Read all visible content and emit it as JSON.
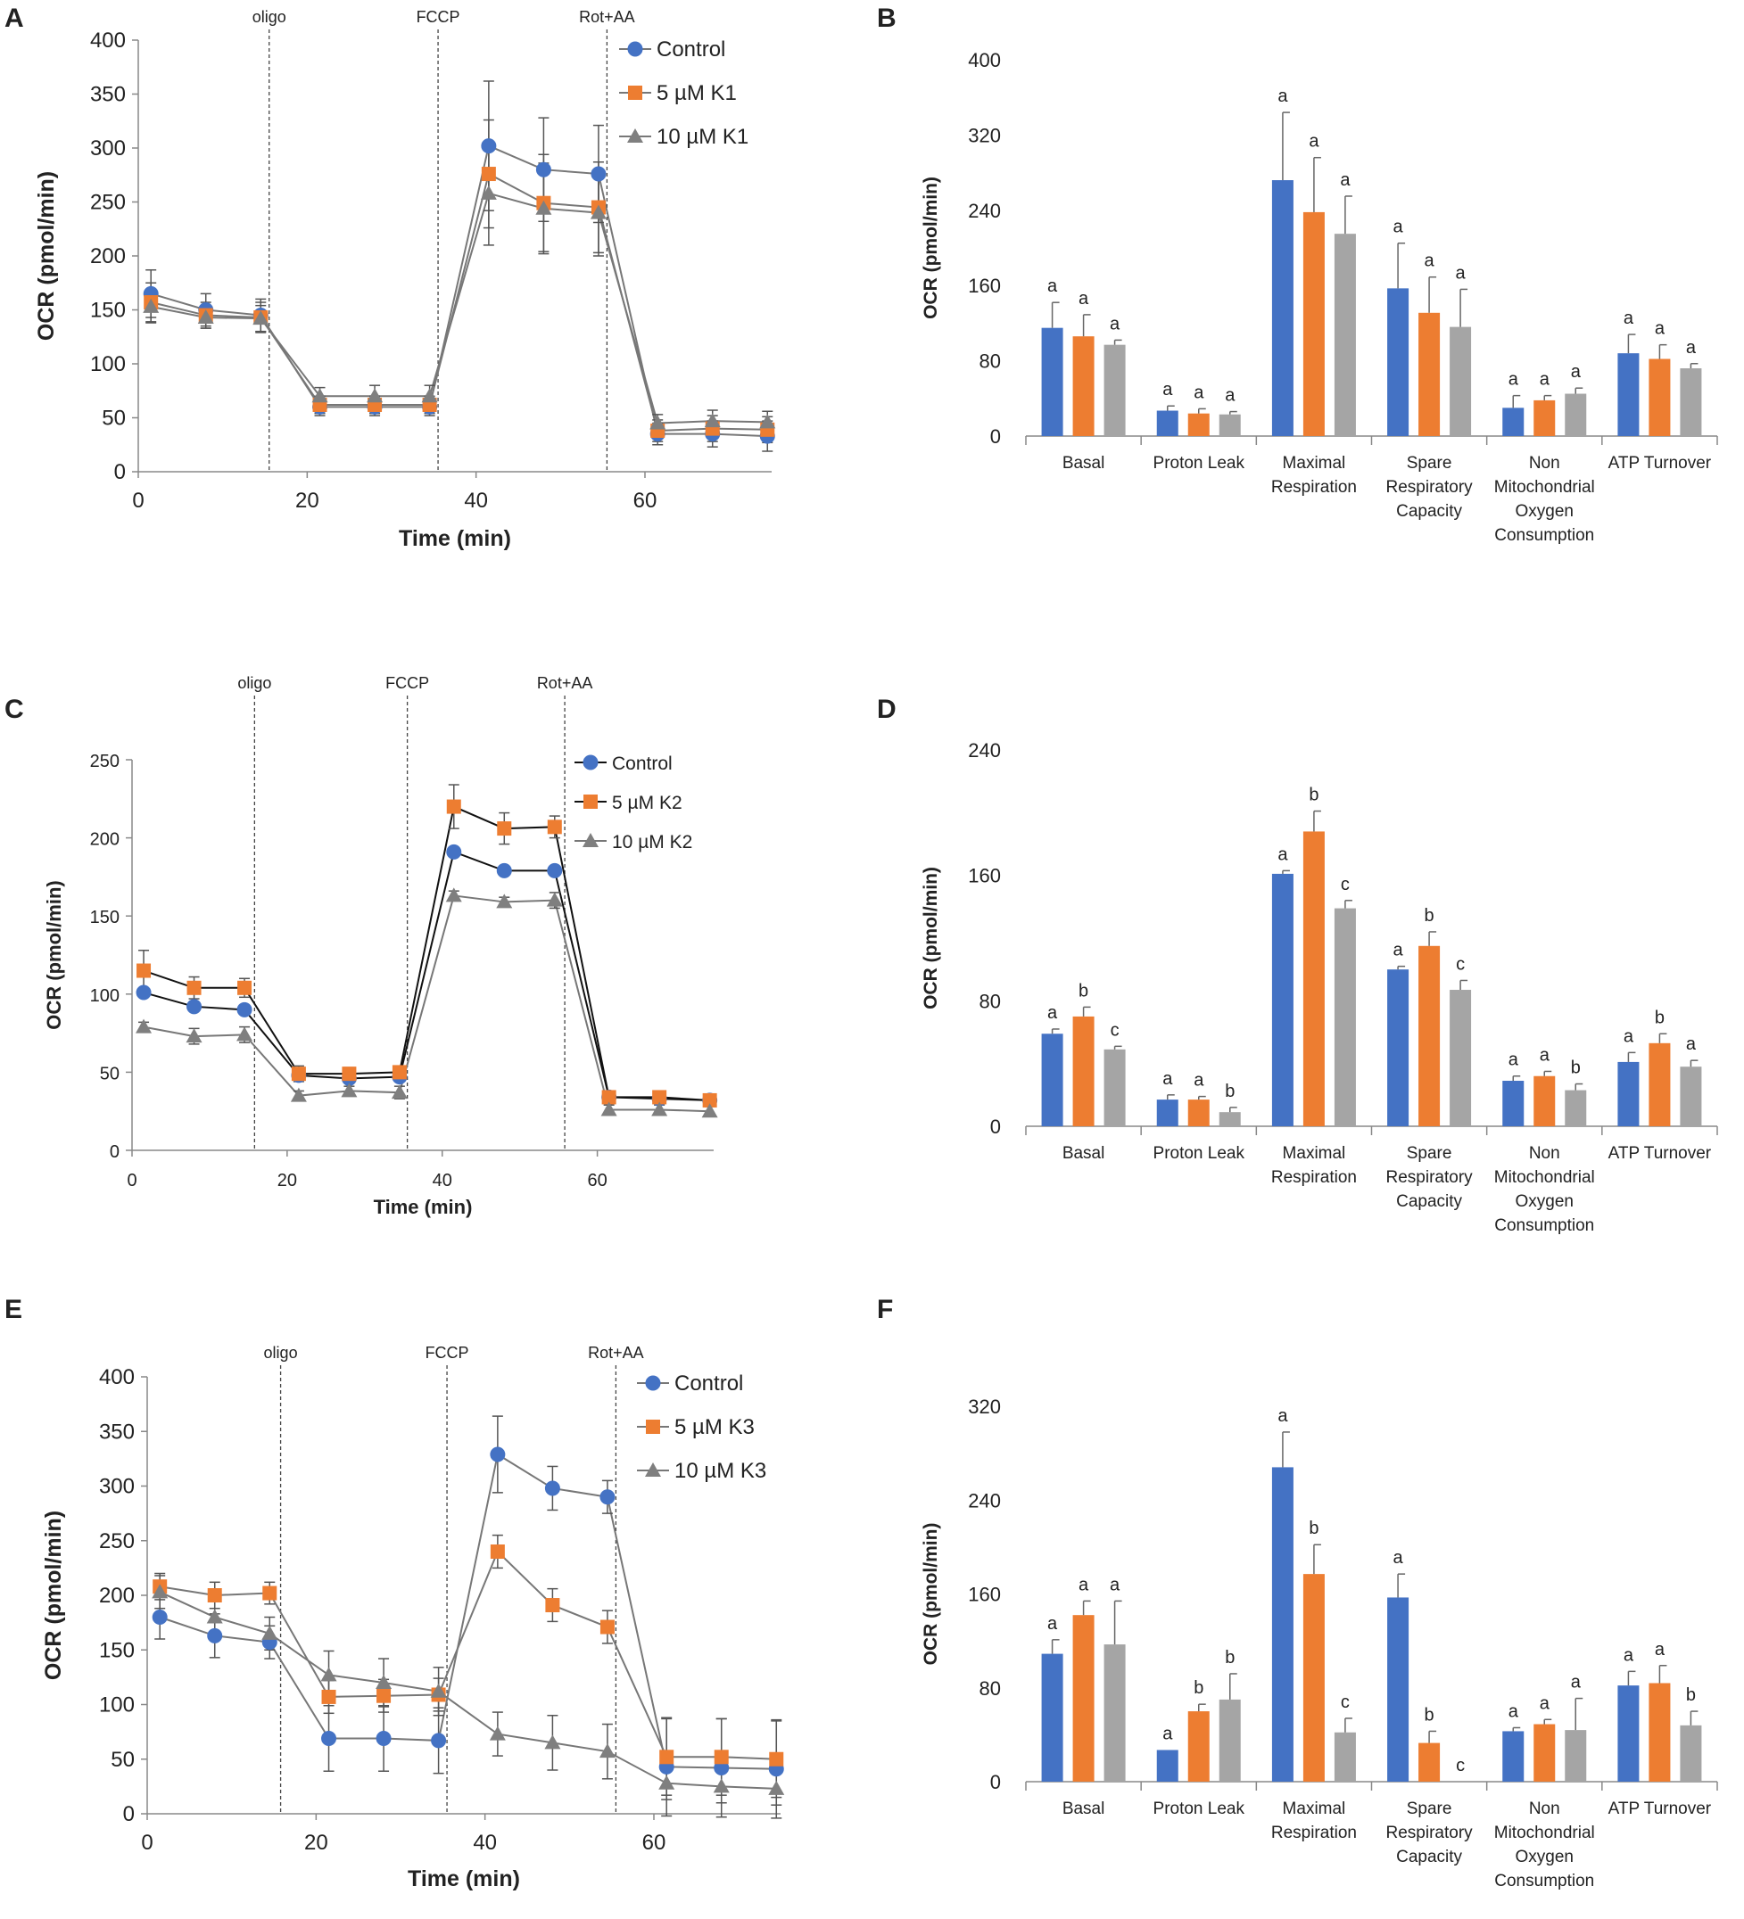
{
  "colors": {
    "control": "#4472C4",
    "k_low": "#ED7D31",
    "k_high": "#A5A5A5",
    "grey_marker": "#7F7F7F",
    "axis": "#888888"
  },
  "chart_data": [
    {
      "id": "A",
      "panel_label": "A",
      "type": "line",
      "title": "",
      "xlabel": "Time (min)",
      "ylabel": "OCR (pmol/min)",
      "xlim": [
        0,
        75
      ],
      "ylim": [
        0,
        400
      ],
      "xticks": [
        0,
        20,
        40,
        60
      ],
      "yticks": [
        0,
        50,
        100,
        150,
        200,
        250,
        300,
        350,
        400
      ],
      "injections": [
        {
          "label": "oligo",
          "x": 15.5
        },
        {
          "label": "FCCP",
          "x": 35.5
        },
        {
          "label": "Rot+AA",
          "x": 55.5
        }
      ],
      "x": [
        1.5,
        8,
        14.5,
        21.5,
        28,
        34.5,
        41.5,
        48,
        54.5,
        61.5,
        68,
        74.5
      ],
      "series": [
        {
          "name": "Control",
          "marker": "circle",
          "line": "grey",
          "values": [
            165,
            150,
            145,
            60,
            60,
            60,
            302,
            280,
            276,
            35,
            35,
            33
          ],
          "errors": [
            22,
            15,
            15,
            8,
            8,
            8,
            60,
            48,
            45,
            10,
            12,
            14
          ]
        },
        {
          "name": "5 µM K1",
          "marker": "square",
          "line": "grey",
          "values": [
            157,
            145,
            143,
            62,
            62,
            62,
            276,
            249,
            245,
            38,
            40,
            39
          ],
          "errors": [
            18,
            12,
            14,
            8,
            8,
            8,
            50,
            45,
            42,
            10,
            12,
            12
          ]
        },
        {
          "name": "10 µM K1",
          "marker": "triangle",
          "line": "grey",
          "values": [
            153,
            143,
            142,
            70,
            70,
            70,
            258,
            244,
            240,
            45,
            47,
            46
          ],
          "errors": [
            15,
            10,
            12,
            8,
            10,
            10,
            48,
            42,
            40,
            8,
            10,
            10
          ]
        }
      ]
    },
    {
      "id": "B",
      "panel_label": "B",
      "type": "bar",
      "title": "",
      "xlabel": "",
      "ylabel": "OCR (pmol/min)",
      "ylim": [
        0,
        400
      ],
      "yticks": [
        0,
        80,
        160,
        240,
        320,
        400
      ],
      "categories": [
        "Basal",
        "Proton Leak",
        "Maximal Respiration",
        "Spare Respiratory Capacity",
        "Non Mitochondrial Oxygen Consumption",
        "ATP Turnover"
      ],
      "category_lines": [
        [
          "Basal"
        ],
        [
          "Proton Leak"
        ],
        [
          "Maximal",
          "Respiration"
        ],
        [
          "Spare",
          "Respiratory",
          "Capacity"
        ],
        [
          "Non",
          "Mitochondrial",
          "Oxygen",
          "Consumption"
        ],
        [
          "ATP Turnover"
        ]
      ],
      "series": [
        {
          "name": "Control",
          "values": [
            115,
            27,
            272,
            157,
            30,
            88
          ],
          "errors": [
            27,
            5,
            72,
            48,
            13,
            20
          ],
          "labels": [
            "a",
            "a",
            "a",
            "a",
            "a",
            "a"
          ]
        },
        {
          "name": "5 µM K",
          "values": [
            106,
            24,
            238,
            131,
            38,
            82
          ],
          "errors": [
            23,
            5,
            58,
            38,
            5,
            15
          ],
          "labels": [
            "a",
            "a",
            "a",
            "a",
            "a",
            "a"
          ]
        },
        {
          "name": "10 µM K",
          "values": [
            97,
            23,
            215,
            116,
            45,
            72
          ],
          "errors": [
            5,
            3,
            40,
            40,
            6,
            5
          ],
          "labels": [
            "a",
            "a",
            "a",
            "a",
            "a",
            "a"
          ]
        }
      ]
    },
    {
      "id": "C",
      "panel_label": "C",
      "type": "line",
      "title": "",
      "xlabel": "Time (min)",
      "ylabel": "OCR (pmol/min)",
      "xlim": [
        0,
        75
      ],
      "ylim": [
        0,
        250
      ],
      "xticks": [
        0,
        20,
        40,
        60
      ],
      "yticks": [
        0,
        50,
        100,
        150,
        200,
        250
      ],
      "injections": [
        {
          "label": "oligo",
          "x": 15.8
        },
        {
          "label": "FCCP",
          "x": 35.5
        },
        {
          "label": "Rot+AA",
          "x": 55.8
        }
      ],
      "x": [
        1.5,
        8,
        14.5,
        21.5,
        28,
        34.5,
        41.5,
        48,
        54.5,
        61.5,
        68,
        74.5
      ],
      "series": [
        {
          "name": "Control",
          "marker": "circle",
          "line": "black",
          "values": [
            101,
            92,
            90,
            48,
            46,
            47,
            191,
            179,
            179,
            34,
            33,
            32
          ],
          "errors": [
            0,
            0,
            0,
            0,
            0,
            0,
            0,
            0,
            0,
            0,
            0,
            0
          ]
        },
        {
          "name": "5 µM K2",
          "marker": "square",
          "line": "black",
          "values": [
            115,
            104,
            104,
            49,
            49,
            50,
            220,
            206,
            207,
            34,
            34,
            32
          ],
          "errors": [
            13,
            7,
            6,
            5,
            4,
            4,
            14,
            10,
            7,
            3,
            3,
            3
          ]
        },
        {
          "name": "10 µM K2",
          "marker": "triangle",
          "line": "grey",
          "values": [
            79,
            73,
            74,
            35,
            38,
            37,
            163,
            159,
            160,
            26,
            26,
            25
          ],
          "errors": [
            3,
            5,
            5,
            3,
            3,
            4,
            3,
            3,
            5,
            3,
            3,
            3
          ]
        }
      ]
    },
    {
      "id": "D",
      "panel_label": "D",
      "type": "bar",
      "title": "",
      "xlabel": "",
      "ylabel": "OCR (pmol/min)",
      "ylim": [
        0,
        240
      ],
      "yticks": [
        0,
        80,
        160,
        240
      ],
      "categories": [
        "Basal",
        "Proton Leak",
        "Maximal Respiration",
        "Spare Respiratory Capacity",
        "Non Mitochondrial Oxygen Consumption",
        "ATP Turnover"
      ],
      "category_lines": [
        [
          "Basal"
        ],
        [
          "Proton Leak"
        ],
        [
          "Maximal",
          "Respiration"
        ],
        [
          "Spare",
          "Respiratory",
          "Capacity"
        ],
        [
          "Non",
          "Mitochondrial",
          "Oxygen",
          "Consumption"
        ],
        [
          "ATP Turnover"
        ]
      ],
      "series": [
        {
          "name": "Control",
          "values": [
            59,
            17,
            161,
            100,
            29,
            41
          ],
          "errors": [
            3,
            3,
            2,
            2,
            3,
            6
          ],
          "labels": [
            "a",
            "a",
            "a",
            "a",
            "a",
            "a"
          ]
        },
        {
          "name": "5 µM K",
          "values": [
            70,
            17,
            188,
            115,
            32,
            53
          ],
          "errors": [
            6,
            2,
            13,
            9,
            3,
            6
          ],
          "labels": [
            "b",
            "a",
            "b",
            "b",
            "a",
            "b"
          ]
        },
        {
          "name": "10 µM K",
          "values": [
            49,
            9,
            139,
            87,
            23,
            38
          ],
          "errors": [
            2,
            3,
            5,
            6,
            4,
            4
          ],
          "labels": [
            "c",
            "b",
            "c",
            "c",
            "b",
            "a"
          ]
        }
      ]
    },
    {
      "id": "E",
      "panel_label": "E",
      "type": "line",
      "title": "",
      "xlabel": "Time (min)",
      "ylabel": "OCR (pmol/min)",
      "xlim": [
        0,
        75
      ],
      "ylim": [
        0,
        400
      ],
      "xticks": [
        0,
        20,
        40,
        60
      ],
      "yticks": [
        0,
        50,
        100,
        150,
        200,
        250,
        300,
        350,
        400
      ],
      "injections": [
        {
          "label": "oligo",
          "x": 15.8
        },
        {
          "label": "FCCP",
          "x": 35.5
        },
        {
          "label": "Rot+AA",
          "x": 55.5
        }
      ],
      "x": [
        1.5,
        8,
        14.5,
        21.5,
        28,
        34.5,
        41.5,
        48,
        54.5,
        61.5,
        68,
        74.5
      ],
      "series": [
        {
          "name": "Control",
          "marker": "circle",
          "line": "grey",
          "values": [
            180,
            163,
            157,
            69,
            69,
            67,
            329,
            298,
            290,
            43,
            42,
            41
          ],
          "errors": [
            20,
            20,
            15,
            30,
            30,
            30,
            35,
            20,
            15,
            45,
            45,
            45
          ]
        },
        {
          "name": "5 µM K3",
          "marker": "square",
          "line": "grey",
          "values": [
            208,
            200,
            202,
            107,
            108,
            109,
            240,
            191,
            171,
            52,
            52,
            50
          ],
          "errors": [
            12,
            12,
            10,
            15,
            15,
            15,
            15,
            15,
            15,
            35,
            35,
            35
          ]
        },
        {
          "name": "10 µM K3",
          "marker": "triangle",
          "line": "grey",
          "values": [
            203,
            180,
            165,
            127,
            120,
            112,
            73,
            65,
            57,
            28,
            25,
            23
          ],
          "errors": [
            15,
            15,
            15,
            22,
            22,
            22,
            20,
            25,
            25,
            15,
            15,
            15
          ]
        }
      ]
    },
    {
      "id": "F",
      "panel_label": "F",
      "type": "bar",
      "title": "",
      "xlabel": "",
      "ylabel": "OCR (pmol/min)",
      "ylim": [
        0,
        320
      ],
      "yticks": [
        0,
        80,
        160,
        240,
        320
      ],
      "categories": [
        "Basal",
        "Proton Leak",
        "Maximal Respiration",
        "Spare Respiratory Capacity",
        "Non Mitochondrial Oxygen Consumption",
        "ATP Turnover"
      ],
      "category_lines": [
        [
          "Basal"
        ],
        [
          "Proton Leak"
        ],
        [
          "Maximal",
          "Respiration"
        ],
        [
          "Spare",
          "Respiratory",
          "Capacity"
        ],
        [
          "Non",
          "Mitochondrial",
          "Oxygen",
          "Consumption"
        ],
        [
          "ATP Turnover"
        ]
      ],
      "series": [
        {
          "name": "Control",
          "values": [
            109,
            27,
            268,
            157,
            43,
            82
          ],
          "errors": [
            12,
            0,
            30,
            20,
            3,
            12
          ],
          "labels": [
            "a",
            "a",
            "a",
            "a",
            "a",
            "a"
          ]
        },
        {
          "name": "5 µM K",
          "values": [
            142,
            60,
            177,
            33,
            49,
            84
          ],
          "errors": [
            12,
            6,
            25,
            10,
            4,
            15
          ],
          "labels": [
            "a",
            "b",
            "b",
            "b",
            "a",
            "a"
          ]
        },
        {
          "name": "10 µM K",
          "values": [
            117,
            70,
            42,
            0,
            44,
            48
          ],
          "errors": [
            37,
            22,
            12,
            0,
            27,
            12
          ],
          "labels": [
            "a",
            "b",
            "c",
            "c",
            "a",
            "b"
          ]
        }
      ]
    }
  ]
}
